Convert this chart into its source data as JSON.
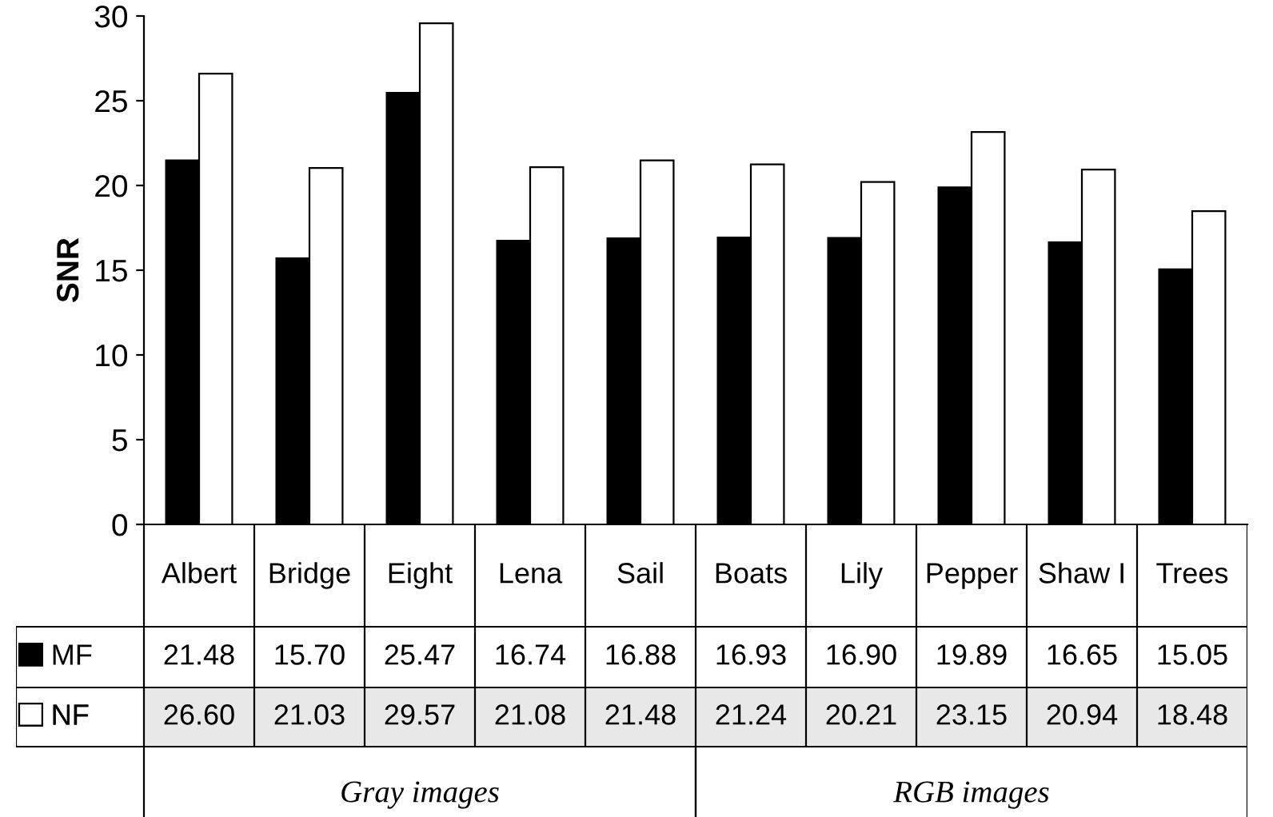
{
  "chart_data": {
    "type": "bar",
    "ylabel": "SNR",
    "categories": [
      "Albert",
      "Bridge",
      "Eight",
      "Lena",
      "Sail",
      "Boats",
      "Lily",
      "Pepper",
      "Shaw I",
      "Trees"
    ],
    "series": [
      {
        "name": "MF",
        "color": "#000000",
        "values": [
          21.48,
          15.7,
          25.47,
          16.74,
          16.88,
          16.93,
          16.9,
          19.89,
          16.65,
          15.05
        ]
      },
      {
        "name": "NF",
        "color": "#ffffff",
        "values": [
          26.6,
          21.03,
          29.57,
          21.08,
          21.48,
          21.24,
          20.21,
          23.15,
          20.94,
          18.48
        ]
      }
    ],
    "value_labels": [
      [
        "21.48",
        "15.70",
        "25.47",
        "16.74",
        "16.88",
        "16.93",
        "16.90",
        "19.89",
        "16.65",
        "15.05"
      ],
      [
        "26.60",
        "21.03",
        "29.57",
        "21.08",
        "21.48",
        "21.24",
        "20.21",
        "23.15",
        "20.94",
        "18.48"
      ]
    ],
    "legend": "bottom left",
    "ylim": [
      0,
      30
    ],
    "yticks": [
      0,
      5,
      10,
      15,
      20,
      25,
      30
    ],
    "grid": false,
    "annotations": [
      "Gray images",
      "RGB images"
    ]
  }
}
